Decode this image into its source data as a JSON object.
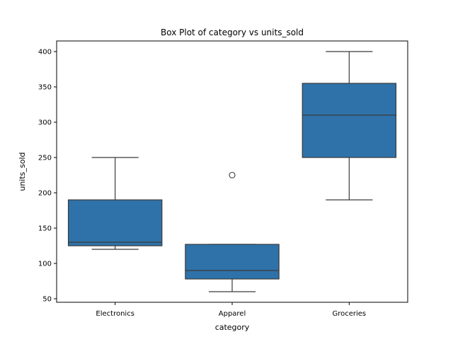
{
  "chart_data": {
    "type": "box",
    "title": "Box Plot of category vs units_sold",
    "xlabel": "category",
    "ylabel": "units_sold",
    "ylim": [
      45,
      415
    ],
    "yticks": [
      50,
      100,
      150,
      200,
      250,
      300,
      350,
      400
    ],
    "grid": false,
    "box_color": "#2e72a9",
    "line_color": "#3b3b3b",
    "categories": [
      "Electronics",
      "Apparel",
      "Groceries"
    ],
    "boxes": [
      {
        "category": "Electronics",
        "whisker_low": 120,
        "q1": 125,
        "median": 130,
        "q3": 190,
        "whisker_high": 250,
        "outliers": []
      },
      {
        "category": "Apparel",
        "whisker_low": 60,
        "q1": 78,
        "median": 90,
        "q3": 127,
        "whisker_high": 127,
        "outliers": [
          225
        ]
      },
      {
        "category": "Groceries",
        "whisker_low": 190,
        "q1": 250,
        "median": 310,
        "q3": 355,
        "whisker_high": 400,
        "outliers": []
      }
    ]
  }
}
